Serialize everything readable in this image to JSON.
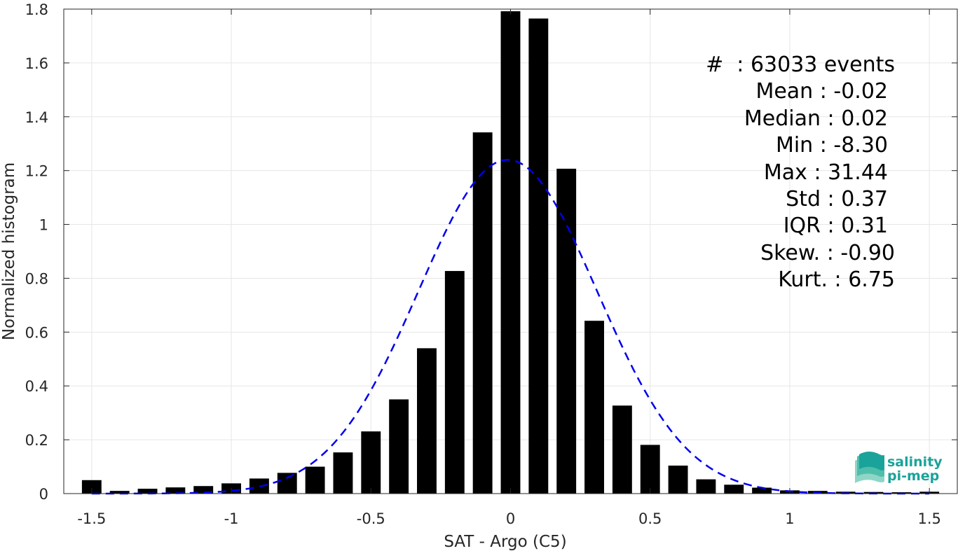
{
  "chart_data": {
    "type": "bar",
    "xlabel": "SAT - Argo (C5)",
    "ylabel": "Normalized histogram",
    "xlim": [
      -1.6,
      1.6
    ],
    "ylim": [
      0,
      1.8
    ],
    "grid": true,
    "x_ticks": [
      -1.5,
      -1,
      -0.5,
      0,
      0.5,
      1,
      1.5
    ],
    "x_tick_labels": [
      "-1.5",
      "-1",
      "-0.5",
      "0",
      "0.5",
      "1",
      "1.5"
    ],
    "y_ticks": [
      0,
      0.2,
      0.4,
      0.6,
      0.8,
      1,
      1.2,
      1.4,
      1.6,
      1.8
    ],
    "y_tick_labels": [
      "0",
      "0.2",
      "0.4",
      "0.6",
      "0.8",
      "1",
      "1.2",
      "1.4",
      "1.6",
      "1.8"
    ],
    "bar_width": 0.07,
    "bar_color": "#000000",
    "bars": {
      "x": [
        -1.5,
        -1.4,
        -1.3,
        -1.2,
        -1.1,
        -1.0,
        -0.9,
        -0.8,
        -0.7,
        -0.6,
        -0.5,
        -0.4,
        -0.3,
        -0.2,
        -0.1,
        0.0,
        0.1,
        0.2,
        0.3,
        0.4,
        0.5,
        0.6,
        0.7,
        0.8,
        0.9,
        1.0,
        1.1,
        1.2,
        1.3,
        1.4,
        1.5
      ],
      "values": [
        0.05,
        0.01,
        0.018,
        0.023,
        0.028,
        0.038,
        0.056,
        0.077,
        0.1,
        0.153,
        0.231,
        0.35,
        0.54,
        0.827,
        1.342,
        1.792,
        1.765,
        1.207,
        0.642,
        0.327,
        0.181,
        0.104,
        0.053,
        0.033,
        0.022,
        0.012,
        0.01,
        0.007,
        0.006,
        0.005,
        0.007
      ]
    },
    "fit_curve": {
      "style": "dashed",
      "color": "#0000ee",
      "mean": -0.01,
      "std": 0.32,
      "peak": 1.24
    },
    "stats": {
      "events": "#  : 63033 events",
      "mean": "Mean : -0.02",
      "median": "Median : 0.02",
      "min": "Min : -8.30",
      "max": "Max : 31.44",
      "std": "Std : 0.37",
      "iqr": "IQR : 0.31",
      "skew": "Skew. : -0.90",
      "kurt": "Kurt. : 6.75"
    }
  },
  "logo": {
    "line1": "salinity",
    "line2": "pi-mep",
    "color": "#1aa39a"
  }
}
